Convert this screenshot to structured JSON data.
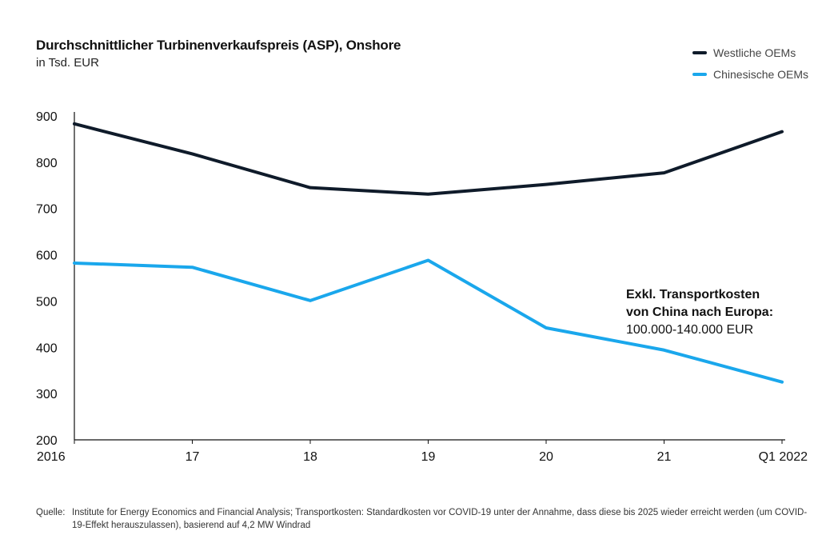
{
  "chart_data": {
    "type": "line",
    "title": "Durchschnittlicher Turbinenverkaufspreis (ASP), Onshore",
    "subtitle": "in Tsd. EUR",
    "categories": [
      "2016",
      "17",
      "18",
      "19",
      "20",
      "21",
      "Q1 2022"
    ],
    "ylim": [
      200,
      900
    ],
    "yticks": [
      900,
      800,
      700,
      600,
      500,
      400,
      300,
      200
    ],
    "series": [
      {
        "name": "Westliche OEMs",
        "color": "#0f1b2a",
        "values": [
          883,
          818,
          745,
          731,
          752,
          777,
          866
        ]
      },
      {
        "name": "Chinesische OEMs",
        "color": "#1aa7ec",
        "values": [
          582,
          573,
          501,
          588,
          442,
          394,
          325
        ]
      }
    ],
    "legend_position": "top-right"
  },
  "annotation": {
    "line1": "Exkl. Transportkosten",
    "line2": "von China nach Europa:",
    "line3": "100.000-140.000 EUR"
  },
  "source": {
    "label": "Quelle:",
    "text": "Institute for Energy Economics and Financial Analysis; Transportkosten: Standardkosten vor COVID-19 unter der Annahme, dass diese bis 2025 wieder erreicht werden (um COVID-19-Effekt herauszulassen), basierend auf 4,2 MW Windrad"
  }
}
